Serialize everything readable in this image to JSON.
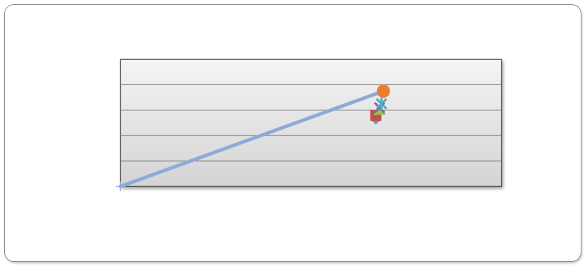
{
  "chart_data": {
    "type": "scatter",
    "title": "",
    "xlabel": "",
    "ylabel": "",
    "grid": true,
    "legend": "none",
    "plot_area_style": "vertical gradient, light grey",
    "xlim": [
      0,
      1
    ],
    "ylim": [
      0,
      5
    ],
    "series": [
      {
        "color": "#8faad6",
        "marker": "plus",
        "mode": "line",
        "points": [
          [
            0.0,
            0.0
          ],
          [
            0.69,
            3.75
          ]
        ]
      },
      {
        "color": "#ed7d31",
        "marker": "circle",
        "mode": "markers",
        "points": [
          [
            0.69,
            3.75
          ]
        ]
      },
      {
        "color": "#5b9bd5",
        "marker": "diamond",
        "mode": "markers",
        "points": [
          [
            0.67,
            2.65
          ]
        ]
      },
      {
        "color": "#c0504d",
        "marker": "square",
        "mode": "markers",
        "points": [
          [
            0.67,
            2.8
          ]
        ]
      },
      {
        "color": "#9bbb59",
        "marker": "triangle",
        "mode": "markers",
        "points": [
          [
            0.68,
            3.0
          ]
        ]
      },
      {
        "color": "#8064a2",
        "marker": "x",
        "mode": "markers",
        "points": [
          [
            0.68,
            3.1
          ]
        ]
      },
      {
        "color": "#4bacc6",
        "marker": "star",
        "mode": "markers",
        "points": [
          [
            0.685,
            3.25
          ]
        ]
      }
    ]
  }
}
